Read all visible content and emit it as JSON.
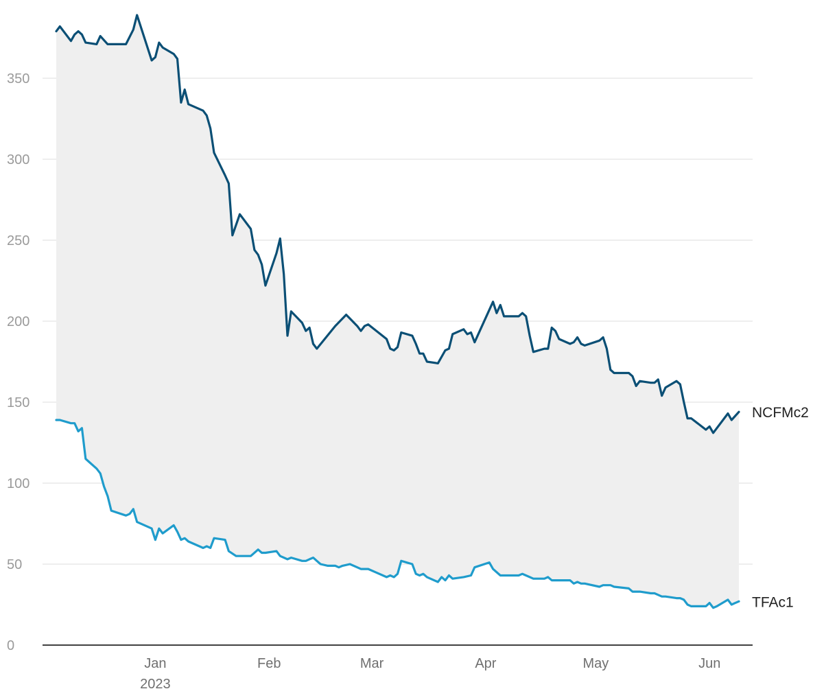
{
  "chart_data": {
    "type": "line",
    "title": "",
    "xlabel": "",
    "ylabel": "",
    "ylim": [
      0,
      380
    ],
    "yticks": [
      0,
      50,
      100,
      150,
      200,
      250,
      300,
      350
    ],
    "xlim": [
      "2022-12-01",
      "2023-06-12"
    ],
    "xticks": [
      {
        "date": "2023-01-01",
        "label": "Jan",
        "sublabel": "2023"
      },
      {
        "date": "2023-02-01",
        "label": "Feb"
      },
      {
        "date": "2023-03-01",
        "label": "Mar"
      },
      {
        "date": "2023-04-01",
        "label": "Apr"
      },
      {
        "date": "2023-05-01",
        "label": "May"
      },
      {
        "date": "2023-06-01",
        "label": "Jun"
      }
    ],
    "grid": true,
    "fill_between": {
      "color": "#efefef"
    },
    "series": [
      {
        "name": "NCFMc2",
        "color": "#0b4f75",
        "points": [
          [
            "2022-12-05",
            379
          ],
          [
            "2022-12-06",
            382
          ],
          [
            "2022-12-09",
            373
          ],
          [
            "2022-12-10",
            377
          ],
          [
            "2022-12-11",
            379
          ],
          [
            "2022-12-12",
            377
          ],
          [
            "2022-12-13",
            372
          ],
          [
            "2022-12-16",
            371
          ],
          [
            "2022-12-17",
            376
          ],
          [
            "2022-12-19",
            371
          ],
          [
            "2022-12-24",
            371
          ],
          [
            "2022-12-26",
            380
          ],
          [
            "2022-12-27",
            389
          ],
          [
            "2022-12-31",
            361
          ],
          [
            "2023-01-01",
            363
          ],
          [
            "2023-01-02",
            372
          ],
          [
            "2023-01-03",
            369
          ],
          [
            "2023-01-06",
            365
          ],
          [
            "2023-01-07",
            362
          ],
          [
            "2023-01-08",
            335
          ],
          [
            "2023-01-09",
            343
          ],
          [
            "2023-01-10",
            334
          ],
          [
            "2023-01-14",
            330
          ],
          [
            "2023-01-15",
            327
          ],
          [
            "2023-01-16",
            319
          ],
          [
            "2023-01-17",
            304
          ],
          [
            "2023-01-20",
            290
          ],
          [
            "2023-01-21",
            285
          ],
          [
            "2023-01-22",
            253
          ],
          [
            "2023-01-24",
            266
          ],
          [
            "2023-01-27",
            257
          ],
          [
            "2023-01-28",
            244
          ],
          [
            "2023-01-29",
            241
          ],
          [
            "2023-01-30",
            235
          ],
          [
            "2023-01-31",
            222
          ],
          [
            "2023-02-03",
            242
          ],
          [
            "2023-02-04",
            251
          ],
          [
            "2023-02-05",
            229
          ],
          [
            "2023-02-06",
            191
          ],
          [
            "2023-02-07",
            206
          ],
          [
            "2023-02-10",
            199
          ],
          [
            "2023-02-11",
            194
          ],
          [
            "2023-02-12",
            196
          ],
          [
            "2023-02-13",
            186
          ],
          [
            "2023-02-14",
            183
          ],
          [
            "2023-02-19",
            197
          ],
          [
            "2023-02-22",
            204
          ],
          [
            "2023-02-25",
            197
          ],
          [
            "2023-02-26",
            194
          ],
          [
            "2023-02-27",
            197
          ],
          [
            "2023-02-28",
            198
          ],
          [
            "2023-03-05",
            189
          ],
          [
            "2023-03-06",
            183
          ],
          [
            "2023-03-07",
            182
          ],
          [
            "2023-03-08",
            184
          ],
          [
            "2023-03-09",
            193
          ],
          [
            "2023-03-12",
            191
          ],
          [
            "2023-03-13",
            186
          ],
          [
            "2023-03-14",
            180
          ],
          [
            "2023-03-15",
            180
          ],
          [
            "2023-03-16",
            175
          ],
          [
            "2023-03-19",
            174
          ],
          [
            "2023-03-21",
            182
          ],
          [
            "2023-03-22",
            183
          ],
          [
            "2023-03-23",
            192
          ],
          [
            "2023-03-26",
            195
          ],
          [
            "2023-03-27",
            192
          ],
          [
            "2023-03-28",
            193
          ],
          [
            "2023-03-29",
            187
          ],
          [
            "2023-04-03",
            212
          ],
          [
            "2023-04-04",
            205
          ],
          [
            "2023-04-05",
            210
          ],
          [
            "2023-04-06",
            203
          ],
          [
            "2023-04-10",
            203
          ],
          [
            "2023-04-11",
            205
          ],
          [
            "2023-04-12",
            203
          ],
          [
            "2023-04-13",
            191
          ],
          [
            "2023-04-14",
            181
          ],
          [
            "2023-04-17",
            183
          ],
          [
            "2023-04-18",
            183
          ],
          [
            "2023-04-19",
            196
          ],
          [
            "2023-04-20",
            194
          ],
          [
            "2023-04-21",
            189
          ],
          [
            "2023-04-24",
            186
          ],
          [
            "2023-04-25",
            187
          ],
          [
            "2023-04-26",
            190
          ],
          [
            "2023-04-27",
            186
          ],
          [
            "2023-04-28",
            185
          ],
          [
            "2023-05-02",
            188
          ],
          [
            "2023-05-03",
            190
          ],
          [
            "2023-05-04",
            183
          ],
          [
            "2023-05-05",
            170
          ],
          [
            "2023-05-06",
            168
          ],
          [
            "2023-05-10",
            168
          ],
          [
            "2023-05-11",
            166
          ],
          [
            "2023-05-12",
            160
          ],
          [
            "2023-05-13",
            163
          ],
          [
            "2023-05-16",
            162
          ],
          [
            "2023-05-17",
            162
          ],
          [
            "2023-05-18",
            164
          ],
          [
            "2023-05-19",
            154
          ],
          [
            "2023-05-20",
            159
          ],
          [
            "2023-05-23",
            163
          ],
          [
            "2023-05-24",
            161
          ],
          [
            "2023-05-25",
            150
          ],
          [
            "2023-05-26",
            140
          ],
          [
            "2023-05-27",
            140
          ],
          [
            "2023-05-31",
            133
          ],
          [
            "2023-06-01",
            135
          ],
          [
            "2023-06-02",
            131
          ],
          [
            "2023-06-06",
            143
          ],
          [
            "2023-06-07",
            139
          ],
          [
            "2023-06-09",
            144
          ]
        ]
      },
      {
        "name": "TFAc1",
        "color": "#1f9ccc",
        "points": [
          [
            "2022-12-05",
            139
          ],
          [
            "2022-12-06",
            139
          ],
          [
            "2022-12-09",
            137
          ],
          [
            "2022-12-10",
            137
          ],
          [
            "2022-12-11",
            132
          ],
          [
            "2022-12-12",
            134
          ],
          [
            "2022-12-13",
            115
          ],
          [
            "2022-12-16",
            109
          ],
          [
            "2022-12-17",
            106
          ],
          [
            "2022-12-18",
            98
          ],
          [
            "2022-12-19",
            92
          ],
          [
            "2022-12-20",
            83
          ],
          [
            "2022-12-24",
            80
          ],
          [
            "2022-12-25",
            81
          ],
          [
            "2022-12-26",
            84
          ],
          [
            "2022-12-27",
            76
          ],
          [
            "2022-12-31",
            72
          ],
          [
            "2023-01-01",
            65
          ],
          [
            "2023-01-02",
            72
          ],
          [
            "2023-01-03",
            69
          ],
          [
            "2023-01-06",
            74
          ],
          [
            "2023-01-07",
            70
          ],
          [
            "2023-01-08",
            65
          ],
          [
            "2023-01-09",
            66
          ],
          [
            "2023-01-10",
            64
          ],
          [
            "2023-01-14",
            60
          ],
          [
            "2023-01-15",
            61
          ],
          [
            "2023-01-16",
            60
          ],
          [
            "2023-01-17",
            66
          ],
          [
            "2023-01-20",
            65
          ],
          [
            "2023-01-21",
            58
          ],
          [
            "2023-01-23",
            55
          ],
          [
            "2023-01-24",
            55
          ],
          [
            "2023-01-27",
            55
          ],
          [
            "2023-01-29",
            59
          ],
          [
            "2023-01-30",
            57
          ],
          [
            "2023-01-31",
            57
          ],
          [
            "2023-02-03",
            58
          ],
          [
            "2023-02-04",
            55
          ],
          [
            "2023-02-06",
            53
          ],
          [
            "2023-02-07",
            54
          ],
          [
            "2023-02-10",
            52
          ],
          [
            "2023-02-11",
            52
          ],
          [
            "2023-02-12",
            53
          ],
          [
            "2023-02-13",
            54
          ],
          [
            "2023-02-14",
            52
          ],
          [
            "2023-02-15",
            50
          ],
          [
            "2023-02-17",
            49
          ],
          [
            "2023-02-19",
            49
          ],
          [
            "2023-02-20",
            48
          ],
          [
            "2023-02-21",
            49
          ],
          [
            "2023-02-23",
            50
          ],
          [
            "2023-02-25",
            48
          ],
          [
            "2023-02-26",
            47
          ],
          [
            "2023-02-27",
            47
          ],
          [
            "2023-02-28",
            47
          ],
          [
            "2023-03-02",
            45
          ],
          [
            "2023-03-05",
            42
          ],
          [
            "2023-03-06",
            43
          ],
          [
            "2023-03-07",
            42
          ],
          [
            "2023-03-08",
            44
          ],
          [
            "2023-03-09",
            52
          ],
          [
            "2023-03-12",
            50
          ],
          [
            "2023-03-13",
            44
          ],
          [
            "2023-03-14",
            43
          ],
          [
            "2023-03-15",
            44
          ],
          [
            "2023-03-16",
            42
          ],
          [
            "2023-03-19",
            39
          ],
          [
            "2023-03-20",
            42
          ],
          [
            "2023-03-21",
            40
          ],
          [
            "2023-03-22",
            43
          ],
          [
            "2023-03-23",
            41
          ],
          [
            "2023-03-26",
            42
          ],
          [
            "2023-03-28",
            43
          ],
          [
            "2023-03-29",
            48
          ],
          [
            "2023-04-02",
            51
          ],
          [
            "2023-04-03",
            47
          ],
          [
            "2023-04-05",
            43
          ],
          [
            "2023-04-06",
            43
          ],
          [
            "2023-04-10",
            43
          ],
          [
            "2023-04-11",
            44
          ],
          [
            "2023-04-12",
            43
          ],
          [
            "2023-04-14",
            41
          ],
          [
            "2023-04-17",
            41
          ],
          [
            "2023-04-18",
            42
          ],
          [
            "2023-04-19",
            40
          ],
          [
            "2023-04-20",
            40
          ],
          [
            "2023-04-24",
            40
          ],
          [
            "2023-04-25",
            38
          ],
          [
            "2023-04-26",
            39
          ],
          [
            "2023-04-27",
            38
          ],
          [
            "2023-04-28",
            38
          ],
          [
            "2023-05-02",
            36
          ],
          [
            "2023-05-03",
            37
          ],
          [
            "2023-05-04",
            37
          ],
          [
            "2023-05-05",
            37
          ],
          [
            "2023-05-06",
            36
          ],
          [
            "2023-05-10",
            35
          ],
          [
            "2023-05-11",
            33
          ],
          [
            "2023-05-12",
            33
          ],
          [
            "2023-05-13",
            33
          ],
          [
            "2023-05-16",
            32
          ],
          [
            "2023-05-17",
            32
          ],
          [
            "2023-05-18",
            31
          ],
          [
            "2023-05-19",
            30
          ],
          [
            "2023-05-20",
            30
          ],
          [
            "2023-05-23",
            29
          ],
          [
            "2023-05-24",
            29
          ],
          [
            "2023-05-25",
            28
          ],
          [
            "2023-05-26",
            25
          ],
          [
            "2023-05-27",
            24
          ],
          [
            "2023-05-31",
            24
          ],
          [
            "2023-06-01",
            26
          ],
          [
            "2023-06-02",
            23
          ],
          [
            "2023-06-03",
            24
          ],
          [
            "2023-06-06",
            28
          ],
          [
            "2023-06-07",
            25
          ],
          [
            "2023-06-08",
            26
          ],
          [
            "2023-06-09",
            27
          ]
        ]
      }
    ]
  }
}
